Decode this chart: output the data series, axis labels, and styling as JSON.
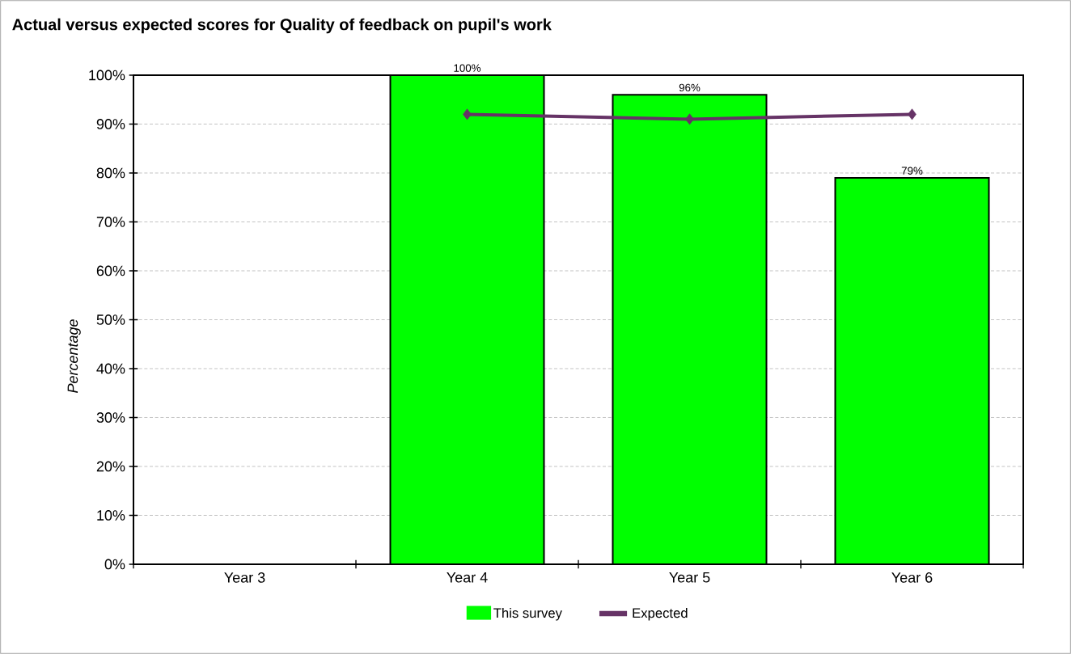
{
  "chart_data": {
    "type": "bar",
    "title": "Actual versus expected scores for Quality of feedback on pupil's work",
    "ylabel": "Percentage",
    "categories": [
      "Year 3",
      "Year 4",
      "Year 5",
      "Year 6"
    ],
    "series": [
      {
        "name": "This survey",
        "color": "#00ff00",
        "values": [
          null,
          100,
          96,
          79
        ],
        "value_labels": [
          null,
          "100%",
          "96%",
          "79%"
        ]
      },
      {
        "name": "Expected",
        "type": "line",
        "color": "#663366",
        "marker": "diamond",
        "values": [
          null,
          92,
          91,
          92
        ]
      }
    ],
    "ylim": [
      0,
      100
    ],
    "yticks": [
      {
        "value": 0,
        "label": "0%"
      },
      {
        "value": 10,
        "label": "10%"
      },
      {
        "value": 20,
        "label": "20%"
      },
      {
        "value": 30,
        "label": "30%"
      },
      {
        "value": 40,
        "label": "40%"
      },
      {
        "value": 50,
        "label": "50%"
      },
      {
        "value": 60,
        "label": "60%"
      },
      {
        "value": 70,
        "label": "70%"
      },
      {
        "value": 80,
        "label": "80%"
      },
      {
        "value": 90,
        "label": "90%"
      },
      {
        "value": 100,
        "label": "100%"
      }
    ],
    "grid": "y",
    "legend": "bottom"
  }
}
